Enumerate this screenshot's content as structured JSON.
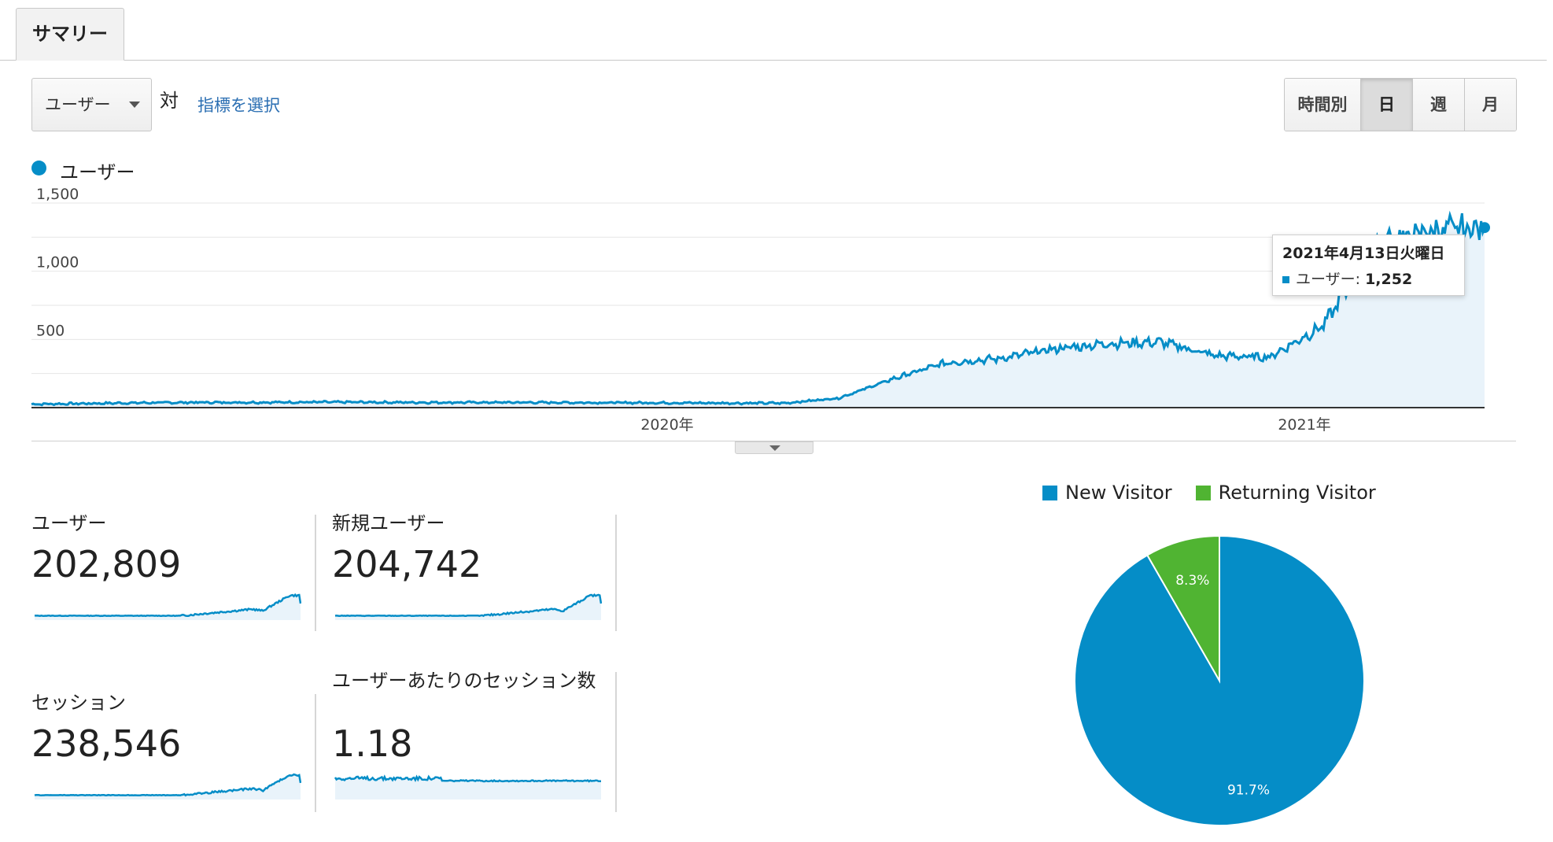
{
  "tabs": {
    "summary_label": "サマリー"
  },
  "controls": {
    "metric_select_value": "ユーザー",
    "vs_label": "対",
    "select_metric_link": "指標を選択",
    "time_buttons": [
      "時間別",
      "日",
      "週",
      "月"
    ],
    "active_time_button": "日"
  },
  "legend": {
    "series_label": "ユーザー",
    "series_color": "#058dc7"
  },
  "chart_data": [
    {
      "type": "area",
      "series": [
        {
          "name": "ユーザー",
          "color": "#058dc7",
          "values_by_month": [
            {
              "x": "2019-01",
              "y": 25
            },
            {
              "x": "2019-02",
              "y": 30
            },
            {
              "x": "2019-03",
              "y": 35
            },
            {
              "x": "2019-04",
              "y": 38
            },
            {
              "x": "2019-05",
              "y": 38
            },
            {
              "x": "2019-06",
              "y": 40
            },
            {
              "x": "2019-07",
              "y": 40
            },
            {
              "x": "2019-08",
              "y": 38
            },
            {
              "x": "2019-09",
              "y": 38
            },
            {
              "x": "2019-10",
              "y": 38
            },
            {
              "x": "2019-11",
              "y": 37
            },
            {
              "x": "2019-12",
              "y": 36
            },
            {
              "x": "2020-01",
              "y": 35
            },
            {
              "x": "2020-02",
              "y": 33
            },
            {
              "x": "2020-03",
              "y": 33
            },
            {
              "x": "2020-04",
              "y": 70
            },
            {
              "x": "2020-05",
              "y": 210
            },
            {
              "x": "2020-06",
              "y": 330
            },
            {
              "x": "2020-07",
              "y": 360
            },
            {
              "x": "2020-08",
              "y": 430
            },
            {
              "x": "2020-09",
              "y": 470
            },
            {
              "x": "2020-10",
              "y": 480
            },
            {
              "x": "2020-11",
              "y": 380
            },
            {
              "x": "2020-12",
              "y": 370
            },
            {
              "x": "2021-01",
              "y": 600
            },
            {
              "x": "2021-02",
              "y": 1200
            },
            {
              "x": "2021-03",
              "y": 1300
            },
            {
              "x": "2021-04",
              "y": 1320
            }
          ]
        }
      ],
      "y_ticks": [
        "1,500",
        "1,000",
        "500"
      ],
      "x_ticks": [
        "2020年",
        "2021年"
      ],
      "ylim": [
        0,
        1500
      ],
      "grid": true
    },
    {
      "type": "pie",
      "slices": [
        {
          "label": "New Visitor",
          "percent": 91.7,
          "percent_label": "91.7%",
          "color": "#058dc7"
        },
        {
          "label": "Returning Visitor",
          "percent": 8.3,
          "percent_label": "8.3%",
          "color": "#50b432"
        }
      ],
      "legend_position": "top"
    }
  ],
  "tooltip": {
    "date": "2021年4月13日火曜日",
    "series_label": "ユーザー:",
    "value": "1,252"
  },
  "metrics": [
    {
      "label": "ユーザー",
      "value": "202,809",
      "trend": "growth"
    },
    {
      "label": "新規ユーザー",
      "value": "204,742",
      "trend": "growth"
    },
    {
      "label": "セッション",
      "value": "238,546",
      "trend": "growth"
    },
    {
      "label": "ユーザーあたりのセッション数",
      "value": "1.18",
      "trend": "flat"
    }
  ],
  "pie_legend": [
    {
      "label": "New Visitor",
      "color": "#058dc7"
    },
    {
      "label": "Returning Visitor",
      "color": "#50b432"
    }
  ]
}
